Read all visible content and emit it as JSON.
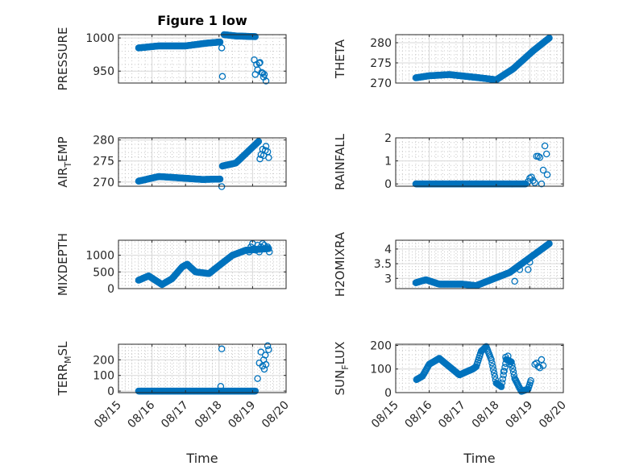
{
  "chart_data": [
    {
      "type": "scatter",
      "title": "Figure 1 low",
      "ylabel": "PRESSURE",
      "ylabel_sub": "",
      "ylabel_post": "",
      "xlim": [
        0,
        5
      ],
      "ylim": [
        932,
        1005
      ],
      "yticks": [
        950,
        1000
      ],
      "yminor_step": 10,
      "xticks": [
        0,
        1,
        2,
        3,
        4,
        5
      ],
      "xticklabels": [
        "08/15",
        "08/16",
        "08/17",
        "08/18",
        "08/19",
        "08/20"
      ],
      "segments": [
        [
          [
            0.6,
            1.2,
            985,
            988
          ],
          [
            1.2,
            2.0,
            988,
            988
          ],
          [
            2.0,
            2.6,
            988,
            992
          ],
          [
            2.6,
            3.05,
            992,
            994
          ]
        ],
        [
          [
            3.15,
            3.5,
            1005,
            1003
          ],
          [
            3.5,
            4.1,
            1003,
            1002
          ]
        ]
      ],
      "x": [
        3.08,
        3.1,
        4.05,
        4.08,
        4.12,
        4.15,
        4.2,
        4.22,
        4.27,
        4.3,
        4.33,
        4.35,
        4.4
      ],
      "y": [
        985,
        942,
        967,
        945,
        960,
        952,
        962,
        963,
        948,
        947,
        941,
        945,
        935
      ]
    },
    {
      "type": "scatter",
      "title": "",
      "ylabel": "THETA",
      "ylabel_sub": "",
      "ylabel_post": "",
      "xlim": [
        0,
        5
      ],
      "ylim": [
        270,
        282
      ],
      "yticks": [
        270,
        275,
        280
      ],
      "yminor_step": 1,
      "xticks": [
        0,
        1,
        2,
        3,
        4,
        5
      ],
      "xticklabels": [
        "08/15",
        "08/16",
        "08/17",
        "08/18",
        "08/19",
        "08/20"
      ],
      "segments": [
        [
          [
            0.6,
            1.0,
            271.3,
            271.8
          ],
          [
            1.0,
            1.6,
            271.8,
            272.1
          ],
          [
            1.6,
            2.5,
            272.1,
            271.3
          ],
          [
            2.5,
            3.0,
            271.3,
            270.8
          ],
          [
            3.0,
            3.5,
            270.8,
            273.5
          ],
          [
            3.5,
            4.1,
            273.5,
            278.0
          ],
          [
            4.1,
            4.6,
            278.0,
            281.3
          ]
        ]
      ],
      "x": [],
      "y": []
    },
    {
      "type": "scatter",
      "title": "",
      "ylabel": "AIR",
      "ylabel_sub": "T",
      "ylabel_post": "EMP",
      "xlim": [
        0,
        5
      ],
      "ylim": [
        269,
        280.5
      ],
      "yticks": [
        270,
        275,
        280
      ],
      "yminor_step": 1,
      "xticks": [
        0,
        1,
        2,
        3,
        4,
        5
      ],
      "xticklabels": [
        "08/15",
        "08/16",
        "08/17",
        "08/18",
        "08/19",
        "08/20"
      ],
      "segments": [
        [
          [
            0.6,
            1.2,
            270.2,
            271.3
          ],
          [
            1.2,
            1.6,
            271.3,
            271.1
          ],
          [
            1.6,
            2.5,
            271.1,
            270.6
          ],
          [
            2.5,
            3.05,
            270.6,
            270.7
          ]
        ],
        [
          [
            3.1,
            3.5,
            273.8,
            274.5
          ],
          [
            3.5,
            4.2,
            274.5,
            279.8
          ]
        ]
      ],
      "x": [
        3.08,
        4.22,
        4.25,
        4.3,
        4.33,
        4.38,
        4.4,
        4.45,
        4.48
      ],
      "y": [
        268.9,
        275.5,
        276.5,
        277.8,
        276.3,
        277.5,
        278.5,
        277.2,
        275.8
      ]
    },
    {
      "type": "scatter",
      "title": "",
      "ylabel": "RAINFALL",
      "ylabel_sub": "",
      "ylabel_post": "",
      "xlim": [
        0,
        5
      ],
      "ylim": [
        -0.1,
        2
      ],
      "yticks": [
        0,
        1,
        2
      ],
      "yminor_step": 0.2,
      "xticks": [
        0,
        1,
        2,
        3,
        4,
        5
      ],
      "xticklabels": [
        "08/15",
        "08/16",
        "08/17",
        "08/18",
        "08/19",
        "08/20"
      ],
      "segments": [
        [
          [
            0.6,
            3.9,
            0,
            0
          ]
        ]
      ],
      "x": [
        3.95,
        4.0,
        4.05,
        4.1,
        4.15,
        4.2,
        4.25,
        4.3,
        4.35,
        4.4,
        4.45,
        4.5,
        4.52
      ],
      "y": [
        0.1,
        0.25,
        0.3,
        0.15,
        0.05,
        1.2,
        1.2,
        1.15,
        0.0,
        0.6,
        1.65,
        1.3,
        0.4
      ]
    },
    {
      "type": "scatter",
      "title": "",
      "ylabel": "MIXDEPTH",
      "ylabel_sub": "",
      "ylabel_post": "",
      "xlim": [
        0,
        5
      ],
      "ylim": [
        0,
        1450
      ],
      "yticks": [
        0,
        500,
        1000
      ],
      "yminor_step": 100,
      "xticks": [
        0,
        1,
        2,
        3,
        4,
        5
      ],
      "xticklabels": [
        "08/15",
        "08/16",
        "08/17",
        "08/18",
        "08/19",
        "08/20"
      ],
      "segments": [
        [
          [
            0.6,
            0.9,
            250,
            380
          ],
          [
            0.9,
            1.3,
            380,
            120
          ],
          [
            1.3,
            1.6,
            120,
            300
          ],
          [
            1.6,
            1.9,
            300,
            650
          ],
          [
            1.9,
            2.05,
            650,
            730
          ],
          [
            2.05,
            2.3,
            730,
            500
          ],
          [
            2.3,
            2.7,
            500,
            450
          ],
          [
            2.7,
            2.95,
            450,
            650
          ],
          [
            2.95,
            3.4,
            650,
            1000
          ],
          [
            3.4,
            3.8,
            1000,
            1150
          ],
          [
            3.8,
            4.5,
            1150,
            1200
          ]
        ]
      ],
      "x": [
        3.9,
        3.95,
        4.0,
        4.05,
        4.1,
        4.15,
        4.2,
        4.25,
        4.3,
        4.35,
        4.4,
        4.45,
        4.5
      ],
      "y": [
        1100,
        1250,
        1350,
        1200,
        1150,
        1300,
        1100,
        1250,
        1350,
        1300,
        1200,
        1250,
        1100
      ]
    },
    {
      "type": "scatter",
      "title": "",
      "ylabel": "H2OMIXRA",
      "ylabel_sub": "",
      "ylabel_post": "",
      "xlim": [
        0,
        5
      ],
      "ylim": [
        2.65,
        4.3
      ],
      "yticks": [
        3,
        3.5,
        4
      ],
      "yminor_step": 0.1,
      "xticks": [
        0,
        1,
        2,
        3,
        4,
        5
      ],
      "xticklabels": [
        "08/15",
        "08/16",
        "08/17",
        "08/18",
        "08/19",
        "08/20"
      ],
      "segments": [
        [
          [
            0.6,
            0.9,
            2.85,
            2.95
          ],
          [
            0.9,
            1.3,
            2.95,
            2.8
          ],
          [
            1.3,
            2.0,
            2.8,
            2.8
          ],
          [
            2.0,
            2.4,
            2.8,
            2.75
          ],
          [
            2.4,
            3.4,
            2.75,
            3.2
          ],
          [
            3.4,
            4.0,
            3.2,
            3.7
          ],
          [
            4.0,
            4.6,
            3.7,
            4.2
          ]
        ]
      ],
      "x": [
        3.55,
        3.7,
        3.95,
        4.0
      ],
      "y": [
        2.9,
        3.3,
        3.3,
        3.55
      ]
    },
    {
      "type": "scatter",
      "title": "",
      "ylabel": "TERR",
      "ylabel_sub": "M",
      "ylabel_post": "SL",
      "xlim": [
        0,
        5
      ],
      "ylim": [
        -10,
        300
      ],
      "yticks": [
        0,
        100,
        200
      ],
      "yminor_step": 20,
      "xticks": [
        0,
        1,
        2,
        3,
        4,
        5
      ],
      "xticklabels": [
        "08/15",
        "08/16",
        "08/17",
        "08/18",
        "08/19",
        "08/20"
      ],
      "segments": [
        [
          [
            0.6,
            4.1,
            0,
            0
          ]
        ]
      ],
      "x": [
        3.05,
        3.08,
        4.15,
        4.2,
        4.25,
        4.3,
        4.33,
        4.35,
        4.38,
        4.4,
        4.45,
        4.48
      ],
      "y": [
        30,
        270,
        80,
        180,
        250,
        160,
        200,
        140,
        230,
        170,
        290,
        265
      ]
    },
    {
      "type": "scatter",
      "title": "",
      "ylabel": "SUN",
      "ylabel_sub": "F",
      "ylabel_post": "LUX",
      "xlim": [
        0,
        5
      ],
      "ylim": [
        0,
        205
      ],
      "yticks": [
        0,
        100,
        200
      ],
      "yminor_step": 20,
      "xticks": [
        0,
        1,
        2,
        3,
        4,
        5
      ],
      "xticklabels": [
        "08/15",
        "08/16",
        "08/17",
        "08/18",
        "08/19",
        "08/20"
      ],
      "segments": [
        [
          [
            0.62,
            0.8,
            55,
            70
          ],
          [
            0.8,
            1.0,
            70,
            120
          ],
          [
            1.0,
            1.3,
            120,
            145
          ],
          [
            1.3,
            1.6,
            145,
            110
          ],
          [
            1.6,
            1.9,
            110,
            75
          ],
          [
            1.9,
            2.3,
            75,
            100
          ],
          [
            2.3,
            2.4,
            100,
            110
          ],
          [
            2.4,
            2.55,
            110,
            175
          ],
          [
            2.55,
            2.7,
            175,
            195
          ],
          [
            2.7,
            2.85,
            195,
            140
          ],
          [
            2.85,
            3.0,
            140,
            40
          ],
          [
            3.0,
            3.15,
            40,
            25
          ],
          [
            3.15,
            3.3,
            25,
            140
          ],
          [
            3.3,
            3.45,
            140,
            130
          ],
          [
            3.45,
            3.55,
            130,
            60
          ],
          [
            3.55,
            3.75,
            60,
            5
          ],
          [
            3.75,
            3.95,
            5,
            15
          ],
          [
            3.95,
            4.05,
            15,
            60
          ]
        ]
      ],
      "x": [
        3.22,
        3.28,
        3.35,
        3.4,
        4.15,
        4.2,
        4.25,
        4.3,
        4.35,
        4.4
      ],
      "y": [
        90,
        150,
        155,
        120,
        120,
        125,
        110,
        105,
        140,
        115
      ]
    }
  ],
  "xlabel": "Time",
  "colors": {
    "marker": "#0072BD",
    "axis": "#262626"
  }
}
